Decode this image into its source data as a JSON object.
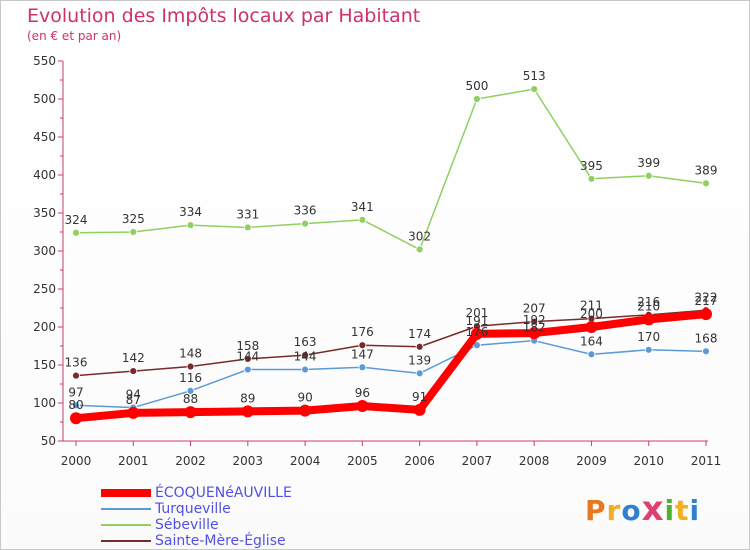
{
  "title": "Evolution des Impôts locaux par Habitant",
  "subtitle": "(en € et par an)",
  "logo": {
    "text": "Proxiti",
    "colors": [
      "#e87820",
      "#f0b020",
      "#3080d0",
      "#e04070",
      "#50b030",
      "#f0b020",
      "#3080d0"
    ]
  },
  "chart_data": {
    "type": "line",
    "title": "Evolution des Impôts locaux par Habitant",
    "subtitle": "(en € et par an)",
    "x": [
      "2000",
      "2001",
      "2002",
      "2003",
      "2004",
      "2005",
      "2006",
      "2007",
      "2008",
      "2009",
      "2010",
      "2011"
    ],
    "ylim": [
      50,
      550
    ],
    "yticks": [
      50,
      100,
      150,
      200,
      250,
      300,
      350,
      400,
      450,
      500,
      550
    ],
    "grid": false,
    "legend_position": "bottom-left",
    "series": [
      {
        "name": "ÉCOQUENéAUVILLE",
        "color": "#ff0000",
        "values": [
          80,
          87,
          88,
          89,
          90,
          96,
          91,
          191,
          192,
          200,
          210,
          217
        ],
        "labels": [
          "80",
          "87",
          "88",
          "89",
          "90",
          "96",
          "91",
          "191",
          "192",
          "200",
          "210",
          "217"
        ]
      },
      {
        "name": "Turqueville",
        "color": "#5a9ad8",
        "values": [
          97,
          94,
          116,
          144,
          144,
          147,
          139,
          176,
          182,
          164,
          170,
          168
        ],
        "labels": [
          "97",
          "94",
          "116",
          "144",
          "144",
          "147",
          "139",
          "176",
          "182",
          "164",
          "170",
          "168"
        ]
      },
      {
        "name": "Sébeville",
        "color": "#90d060",
        "values": [
          324,
          325,
          334,
          331,
          336,
          341,
          302,
          500,
          513,
          395,
          399,
          389
        ],
        "labels": [
          "324",
          "325",
          "334",
          "331",
          "336",
          "341",
          "302",
          "500",
          "513",
          "395",
          "399",
          "389"
        ]
      },
      {
        "name": "Sainte-Mère-Église",
        "color": "#7a2a2a",
        "values": [
          136,
          142,
          148,
          158,
          163,
          176,
          174,
          201,
          207,
          211,
          216,
          222
        ],
        "labels": [
          "136",
          "142",
          "148",
          "158",
          "163",
          "176",
          "174",
          "201",
          "207",
          "211",
          "216",
          "222"
        ]
      }
    ]
  }
}
